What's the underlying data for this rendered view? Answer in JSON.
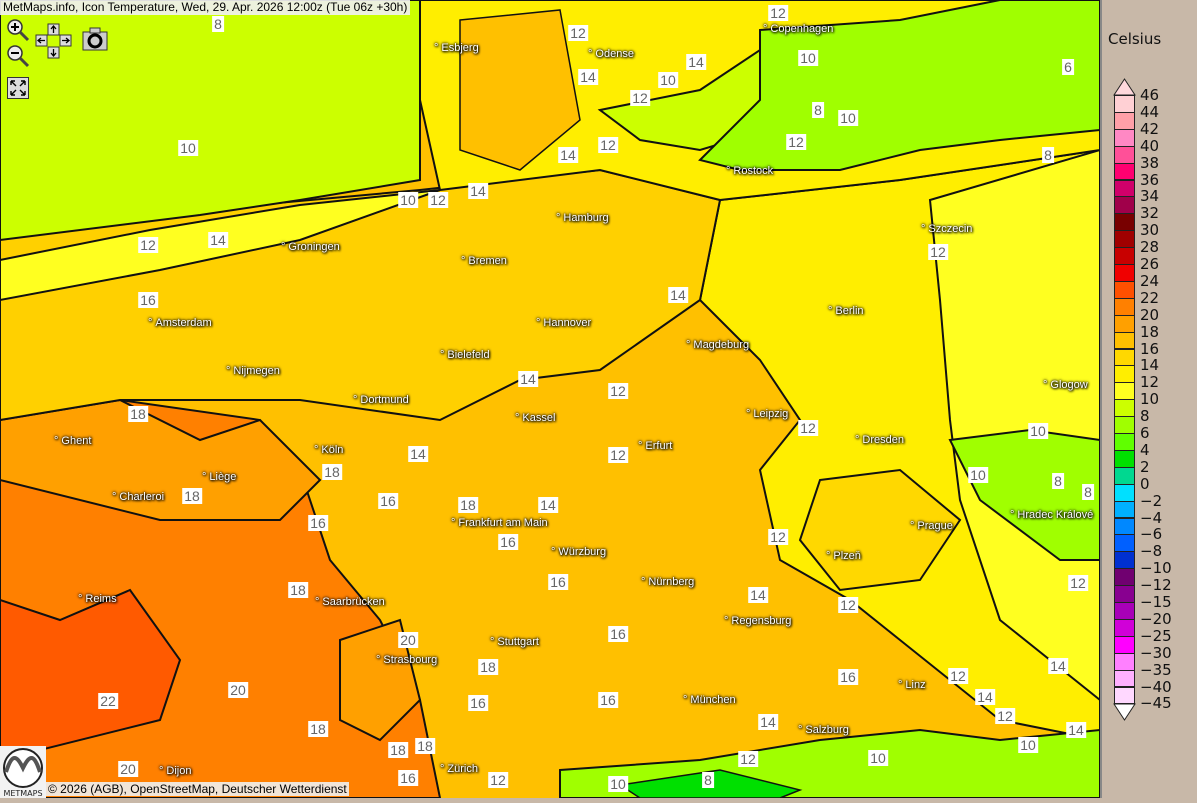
{
  "header": {
    "title": "MetMaps.info, Icon Temperature, Wed, 29. Apr. 2026 12:00z (Tue 06z +30h)"
  },
  "controls": [
    {
      "name": "zoom-in-icon"
    },
    {
      "name": "zoom-out-icon"
    },
    {
      "name": "pan-arrows-icon"
    },
    {
      "name": "camera-icon"
    },
    {
      "name": "fullscreen-icon"
    }
  ],
  "cities": [
    "Esbjerg",
    "Odense",
    "Copenhagen",
    "Rostock",
    "Hamburg",
    "Groningen",
    "Bremen",
    "Szczecin",
    "Amsterdam",
    "Hannover",
    "Berlin",
    "Bielefeld",
    "Magdeburg",
    "Nijmegen",
    "Dortmund",
    "Glogow",
    "Kassel",
    "Leipzig",
    "Ghent",
    "Köln",
    "Erfurt",
    "Dresden",
    "Liège",
    "Charleroi",
    "Frankfurt am Main",
    "Hradec Králové",
    "Prague",
    "Würzburg",
    "Plzeň",
    "Nürnberg",
    "Reims",
    "Saarbrücken",
    "Regensburg",
    "Stuttgart",
    "Strasbourg",
    "Linz",
    "München",
    "Salzburg",
    "Zürich",
    "Dijon"
  ],
  "contour_labels": [
    "8",
    "12",
    "12",
    "14",
    "10",
    "14",
    "12",
    "10",
    "8",
    "10",
    "12",
    "12",
    "14",
    "6",
    "8",
    "10",
    "10",
    "12",
    "14",
    "14",
    "12",
    "12",
    "16",
    "14",
    "14",
    "12",
    "18",
    "12",
    "10",
    "14",
    "18",
    "12",
    "10",
    "8",
    "8",
    "18",
    "16",
    "18",
    "14",
    "16",
    "16",
    "12",
    "16",
    "12",
    "18",
    "14",
    "12",
    "16",
    "20",
    "18",
    "14",
    "16",
    "12",
    "14",
    "22",
    "20",
    "16",
    "16",
    "12",
    "14",
    "18",
    "14",
    "10",
    "10",
    "12",
    "18",
    "18",
    "16",
    "12",
    "20",
    "10",
    "8"
  ],
  "legend": {
    "unit": "Celsius",
    "ticks": [
      "46",
      "44",
      "42",
      "40",
      "38",
      "36",
      "34",
      "32",
      "30",
      "28",
      "26",
      "24",
      "22",
      "20",
      "18",
      "16",
      "14",
      "12",
      "10",
      "8",
      "6",
      "4",
      "2",
      "0",
      "−2",
      "−4",
      "−6",
      "−8",
      "−10",
      "−12",
      "−15",
      "−20",
      "−25",
      "−30",
      "−35",
      "−40",
      "−45"
    ],
    "colors": [
      "#ffd0d4",
      "#ffa0a8",
      "#ff88c4",
      "#ff5098",
      "#ff0070",
      "#d0006a",
      "#a0004a",
      "#780000",
      "#a00000",
      "#c80000",
      "#f00000",
      "#ff5000",
      "#ff8000",
      "#ffa000",
      "#ffc000",
      "#ffd800",
      "#ffee00",
      "#ffff20",
      "#ccff00",
      "#a0ff00",
      "#60ff00",
      "#00e000",
      "#00d890",
      "#00e0ff",
      "#00b0ff",
      "#0088ff",
      "#0060ff",
      "#0030d0",
      "#700070",
      "#880090",
      "#a800b8",
      "#d000d8",
      "#ff00ff",
      "#ff80ff",
      "#ffb0ff",
      "#ffd8ff"
    ],
    "top_arrow_color": "#ffd8dc",
    "bottom_arrow_color": "#ffffff"
  },
  "footer": {
    "copyright": "© 2026 (AGB), OpenStreetMap, Deutscher Wetterdienst",
    "logo_text": "METMAPS"
  }
}
